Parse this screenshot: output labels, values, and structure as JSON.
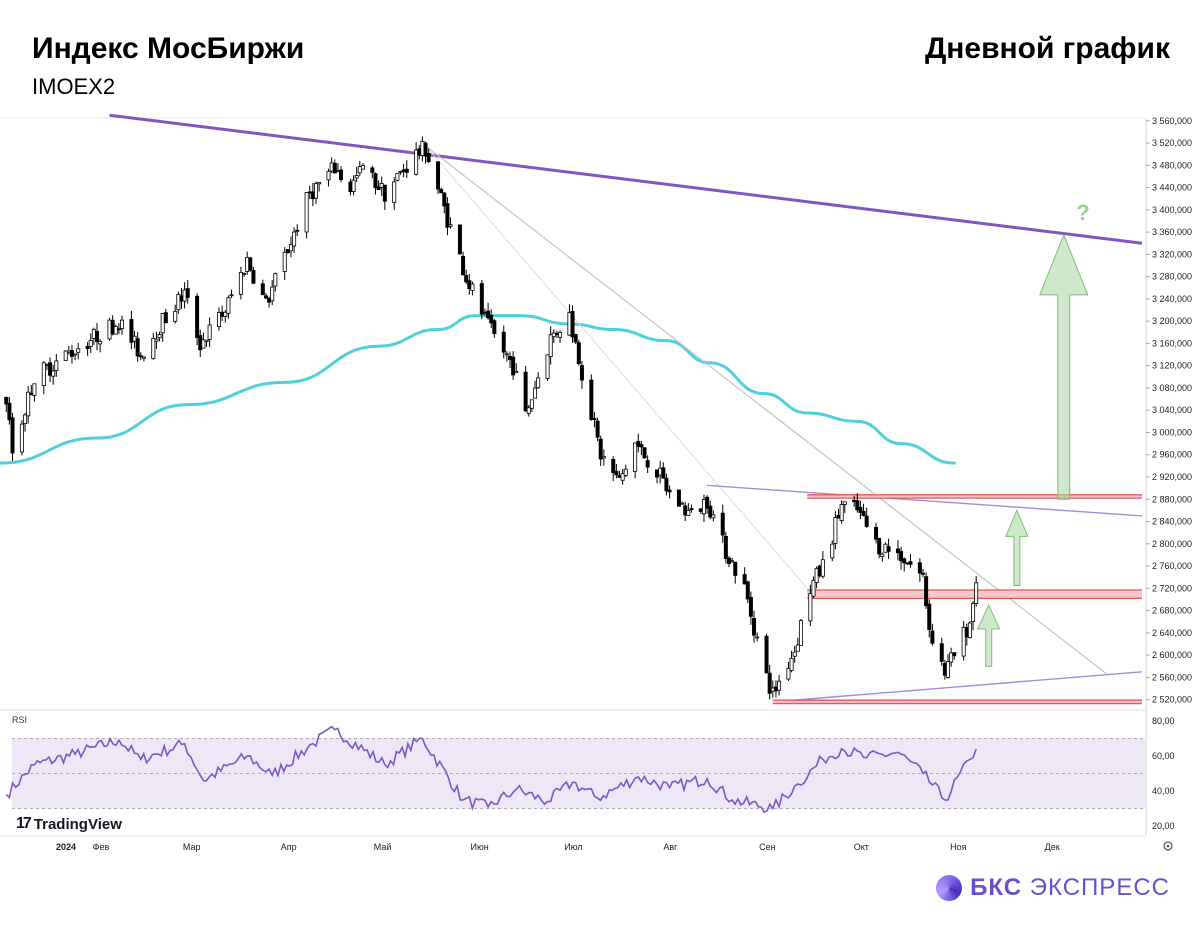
{
  "header": {
    "title": "Индекс МосБиржи",
    "ticker": "IMOEX2",
    "timeframe": "Дневной график"
  },
  "watermark": {
    "tradingview": "TradingView"
  },
  "brand": {
    "name_bold": "БКС",
    "name_rest": "ЭКСПРЕСС"
  },
  "colors": {
    "up": "#ffffff",
    "down": "#000000",
    "ma": "#4fd0dc",
    "trend": "#7e57c2",
    "channel": "#9e8fd8",
    "support": "#e8575f",
    "arrow": "#a7d6a0",
    "rsi": "#7e57c2",
    "rsi_band": "#ede7f6"
  },
  "chart_data": [
    {
      "type": "candlestick",
      "title": "Индекс МосБиржи",
      "subtitle": "IMOEX2",
      "xlabel": "",
      "ylabel": "",
      "x_ticks": [
        "2024",
        "Фев",
        "Мар",
        "Апр",
        "Май",
        "Июн",
        "Июл",
        "Авг",
        "Сен",
        "Окт",
        "Ноя",
        "Дек"
      ],
      "y_ticks": [
        "3 560,000",
        "3 520,000",
        "3 480,000",
        "3 440,000",
        "3 400,000",
        "3 360,000",
        "3 320,000",
        "3 280,000",
        "3 240,000",
        "3 200,000",
        "3 160,000",
        "3 120,000",
        "3 080,000",
        "3 040,000",
        "3 000,000",
        "2 960,000",
        "2 920,000",
        "2 880,000",
        "2 840,000",
        "2 800,000",
        "2 760,000",
        "2 720,000",
        "2 680,000",
        "2 640,000",
        "2 600,000",
        "2 560,000",
        "2 520,000"
      ],
      "ylim": [
        2505,
        3565
      ],
      "date_range": [
        "2024-01-03",
        "2024-11-08"
      ],
      "anchors": [
        [
          "2024-01-03",
          3060
        ],
        [
          "2024-01-05",
          2965
        ],
        [
          "2024-01-12",
          3100
        ],
        [
          "2024-01-25",
          3150
        ],
        [
          "2024-02-08",
          3200
        ],
        [
          "2024-02-15",
          3140
        ],
        [
          "2024-02-22",
          3200
        ],
        [
          "2024-02-29",
          3250
        ],
        [
          "2024-03-05",
          3160
        ],
        [
          "2024-03-13",
          3220
        ],
        [
          "2024-03-20",
          3310
        ],
        [
          "2024-03-26",
          3230
        ],
        [
          "2024-04-02",
          3330
        ],
        [
          "2024-04-09",
          3430
        ],
        [
          "2024-04-17",
          3475
        ],
        [
          "2024-04-22",
          3440
        ],
        [
          "2024-04-26",
          3475
        ],
        [
          "2024-05-03",
          3430
        ],
        [
          "2024-05-13",
          3500
        ],
        [
          "2024-05-16",
          3510
        ],
        [
          "2024-05-21",
          3420
        ],
        [
          "2024-05-29",
          3280
        ],
        [
          "2024-06-05",
          3190
        ],
        [
          "2024-06-13",
          3120
        ],
        [
          "2024-06-17",
          3030
        ],
        [
          "2024-06-25",
          3170
        ],
        [
          "2024-07-01",
          3210
        ],
        [
          "2024-07-05",
          3110
        ],
        [
          "2024-07-11",
          2960
        ],
        [
          "2024-07-17",
          2910
        ],
        [
          "2024-07-22",
          2980
        ],
        [
          "2024-07-29",
          2930
        ],
        [
          "2024-08-02",
          2890
        ],
        [
          "2024-08-09",
          2850
        ],
        [
          "2024-08-14",
          2880
        ],
        [
          "2024-08-19",
          2800
        ],
        [
          "2024-08-26",
          2720
        ],
        [
          "2024-09-02",
          2560
        ],
        [
          "2024-09-04",
          2530
        ],
        [
          "2024-09-11",
          2610
        ],
        [
          "2024-09-16",
          2720
        ],
        [
          "2024-09-20",
          2760
        ],
        [
          "2024-09-26",
          2870
        ],
        [
          "2024-10-01",
          2860
        ],
        [
          "2024-10-07",
          2800
        ],
        [
          "2024-10-15",
          2780
        ],
        [
          "2024-10-22",
          2740
        ],
        [
          "2024-10-24",
          2650
        ],
        [
          "2024-10-29",
          2570
        ],
        [
          "2024-11-01",
          2600
        ],
        [
          "2024-11-06",
          2660
        ],
        [
          "2024-11-08",
          2730
        ]
      ],
      "last_close": 2730
    },
    {
      "type": "line",
      "name": "MA",
      "x": [
        "2024-01-01",
        "2024-02-01",
        "2024-03-01",
        "2024-04-01",
        "2024-05-01",
        "2024-05-20",
        "2024-06-01",
        "2024-06-15",
        "2024-07-01",
        "2024-07-15",
        "2024-08-01",
        "2024-08-15",
        "2024-09-01",
        "2024-09-15",
        "2024-10-01",
        "2024-10-15",
        "2024-11-01"
      ],
      "y": [
        2945,
        2990,
        3050,
        3090,
        3155,
        3185,
        3210,
        3210,
        3195,
        3185,
        3165,
        3125,
        3070,
        3035,
        3020,
        2980,
        2945
      ]
    },
    {
      "type": "line",
      "name": "RSI",
      "ylim": [
        15,
        85
      ],
      "y_ticks": [
        "80,00",
        "60,00",
        "40,00",
        "20,00"
      ],
      "bands": [
        30,
        50,
        70
      ],
      "x": [
        "2024-01-03",
        "2024-01-12",
        "2024-01-25",
        "2024-02-08",
        "2024-02-15",
        "2024-02-29",
        "2024-03-06",
        "2024-03-20",
        "2024-03-28",
        "2024-04-10",
        "2024-04-17",
        "2024-05-03",
        "2024-05-15",
        "2024-05-28",
        "2024-06-05",
        "2024-06-14",
        "2024-06-24",
        "2024-07-02",
        "2024-07-10",
        "2024-07-23",
        "2024-08-02",
        "2024-08-14",
        "2024-08-22",
        "2024-09-04",
        "2024-09-12",
        "2024-09-20",
        "2024-09-26",
        "2024-10-04",
        "2024-10-14",
        "2024-10-22",
        "2024-10-29",
        "2024-11-06",
        "2024-11-08"
      ],
      "y": [
        38,
        55,
        61,
        69,
        58,
        67,
        46,
        60,
        49,
        67,
        75,
        55,
        70,
        35,
        31,
        41,
        34,
        45,
        36,
        48,
        42,
        47,
        35,
        30,
        44,
        58,
        64,
        59,
        62,
        50,
        35,
        58,
        64
      ]
    }
  ],
  "annotations": {
    "question": "?"
  },
  "rsi_label": "RSI"
}
